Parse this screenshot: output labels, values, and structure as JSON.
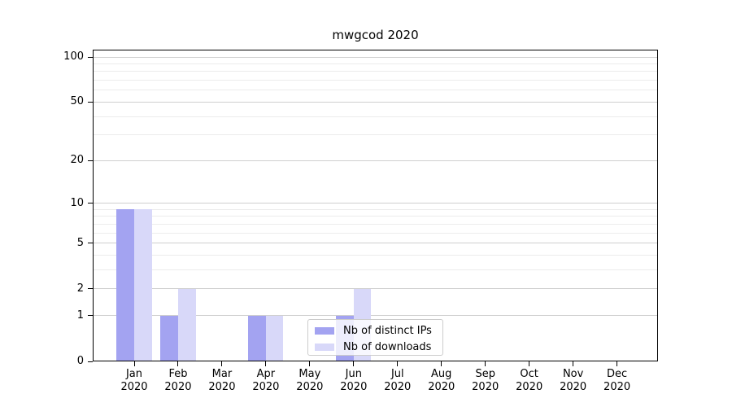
{
  "title": "mwgcod 2020",
  "chart_data": {
    "type": "bar",
    "title": "mwgcod 2020",
    "categories": [
      "Jan",
      "Feb",
      "Mar",
      "Apr",
      "May",
      "Jun",
      "Jul",
      "Aug",
      "Sep",
      "Oct",
      "Nov",
      "Dec"
    ],
    "category_year": "2020",
    "series": [
      {
        "name": "Nb of distinct IPs",
        "color": "#a3a3f1",
        "values": [
          9,
          1,
          0,
          1,
          0,
          1,
          0,
          0,
          0,
          0,
          0,
          0
        ]
      },
      {
        "name": "Nb of downloads",
        "color": "#d8d8f9",
        "values": [
          9,
          2,
          0,
          1,
          0,
          2,
          0,
          0,
          0,
          0,
          0,
          0
        ]
      }
    ],
    "xlabel": "",
    "ylabel": "",
    "y_scale": "log10(1+value)",
    "y_ticks_major": [
      0,
      1,
      2,
      5,
      10,
      20,
      50,
      100
    ],
    "y_ticks_minor": [
      3,
      4,
      6,
      7,
      8,
      9,
      30,
      40,
      60,
      70,
      80,
      90
    ],
    "ylim": [
      0,
      112
    ],
    "grid": "on",
    "legend_position": "lower-center-inside"
  },
  "colors": {
    "background": "#ffffff",
    "spine": "#000000",
    "grid_major": "#cfcfcf",
    "grid_minor": "#ececec",
    "text": "#000000",
    "legend_border": "#cccccc"
  }
}
